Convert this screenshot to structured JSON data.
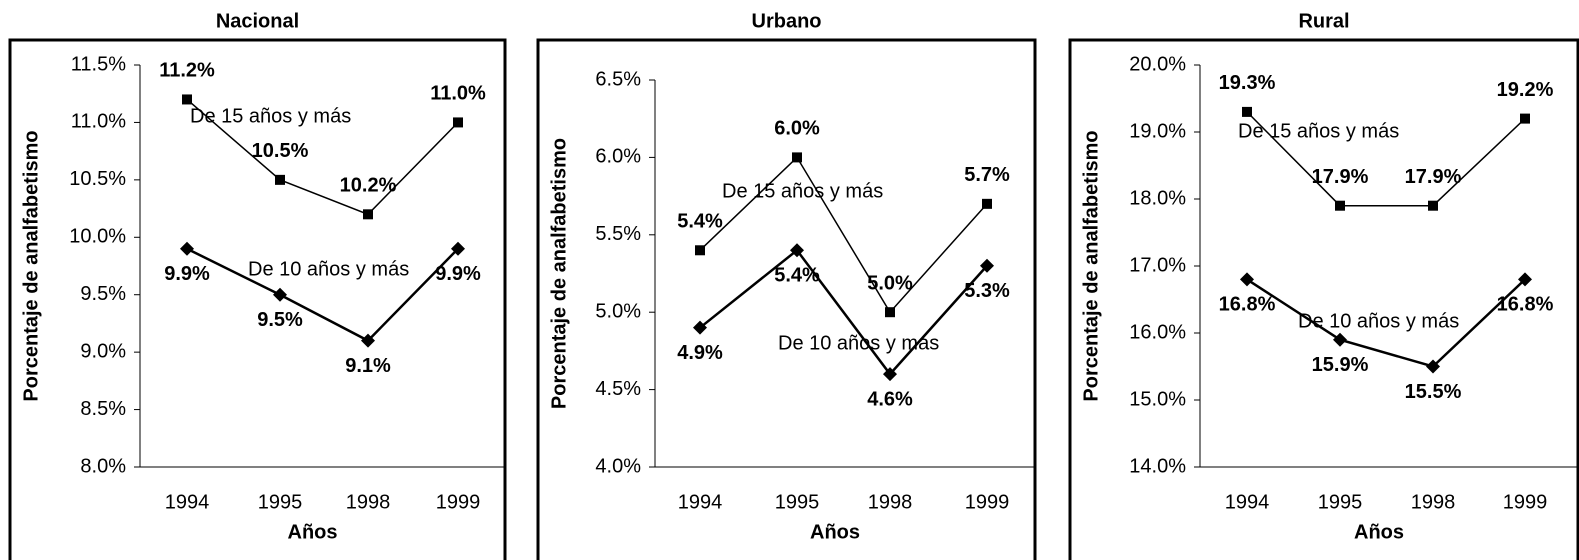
{
  "chart_data": [
    {
      "type": "line",
      "title": "Nacional",
      "xlabel": "Años",
      "ylabel": "Porcentaje de analfabetismo",
      "categories": [
        "1994",
        "1995",
        "1998",
        "1999"
      ],
      "series": [
        {
          "name": "De 15 años y más",
          "color": "#000000",
          "values": [
            11.2,
            10.5,
            10.2,
            11.0
          ],
          "value_labels": [
            "11.2%",
            "10.5%",
            "10.2%",
            "11.0%"
          ]
        },
        {
          "name": "De 10 años y más",
          "color": "#000000",
          "values": [
            9.9,
            9.5,
            9.1,
            9.9
          ],
          "value_labels": [
            "9.9%",
            "9.5%",
            "9.1%",
            "9.9%"
          ]
        }
      ],
      "ylim": [
        8.0,
        11.5
      ],
      "yticks": [
        {
          "value": 8.0,
          "label": "8.0%"
        },
        {
          "value": 8.5,
          "label": "8.5%"
        },
        {
          "value": 9.0,
          "label": "9.0%"
        },
        {
          "value": 9.5,
          "label": "9.5%"
        },
        {
          "value": 10.0,
          "label": "10.0%"
        },
        {
          "value": 10.5,
          "label": "10.5%"
        },
        {
          "value": 11.0,
          "label": "11.0%"
        },
        {
          "value": 11.5,
          "label": "11.5%"
        }
      ]
    },
    {
      "type": "line",
      "title": "Urbano",
      "xlabel": "Años",
      "ylabel": "Porcentaje de analfabetismo",
      "categories": [
        "1994",
        "1995",
        "1998",
        "1999"
      ],
      "series": [
        {
          "name": "De 15 años y más",
          "color": "#000000",
          "values": [
            5.4,
            6.0,
            5.0,
            5.7
          ],
          "value_labels": [
            "5.4%",
            "6.0%",
            "5.0%",
            "5.7%"
          ]
        },
        {
          "name": "De 10 años y más",
          "color": "#000000",
          "values": [
            4.9,
            5.4,
            4.6,
            5.3
          ],
          "value_labels": [
            "4.9%",
            "5.4%",
            "4.6%",
            "5.3%"
          ]
        }
      ],
      "ylim": [
        4.0,
        6.5
      ],
      "yticks": [
        {
          "value": 4.0,
          "label": "4.0%"
        },
        {
          "value": 4.5,
          "label": "4.5%"
        },
        {
          "value": 5.0,
          "label": "5.0%"
        },
        {
          "value": 5.5,
          "label": "5.5%"
        },
        {
          "value": 6.0,
          "label": "6.0%"
        },
        {
          "value": 6.5,
          "label": "6.5%"
        }
      ]
    },
    {
      "type": "line",
      "title": "Rural",
      "xlabel": "Años",
      "ylabel": "Porcentaje de analfabetismo",
      "categories": [
        "1994",
        "1995",
        "1998",
        "1999"
      ],
      "series": [
        {
          "name": "De 15 años y más",
          "color": "#000000",
          "values": [
            19.3,
            17.9,
            17.9,
            19.2
          ],
          "value_labels": [
            "19.3%",
            "17.9%",
            "17.9%",
            "19.2%"
          ]
        },
        {
          "name": "De 10 años y más",
          "color": "#000000",
          "values": [
            16.8,
            15.9,
            15.5,
            16.8
          ],
          "value_labels": [
            "16.8%",
            "15.9%",
            "15.5%",
            "16.8%"
          ]
        }
      ],
      "ylim": [
        14.0,
        20.0
      ],
      "yticks": [
        {
          "value": 14.0,
          "label": "14.0%"
        },
        {
          "value": 15.0,
          "label": "15.0%"
        },
        {
          "value": 16.0,
          "label": "16.0%"
        },
        {
          "value": 17.0,
          "label": "17.0%"
        },
        {
          "value": 18.0,
          "label": "18.0%"
        },
        {
          "value": 19.0,
          "label": "19.0%"
        },
        {
          "value": 20.0,
          "label": "20.0%"
        }
      ]
    }
  ]
}
